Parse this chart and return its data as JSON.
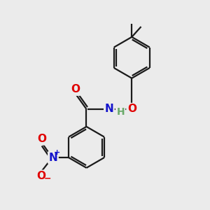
{
  "bg_color": "#ebebeb",
  "bond_color": "#1a1a1a",
  "bond_width": 1.6,
  "atom_colors": {
    "O": "#e00000",
    "N": "#1414cc",
    "H": "#6aaa6a",
    "C": "#1a1a1a"
  },
  "font_size": 10,
  "font_size_H": 9
}
